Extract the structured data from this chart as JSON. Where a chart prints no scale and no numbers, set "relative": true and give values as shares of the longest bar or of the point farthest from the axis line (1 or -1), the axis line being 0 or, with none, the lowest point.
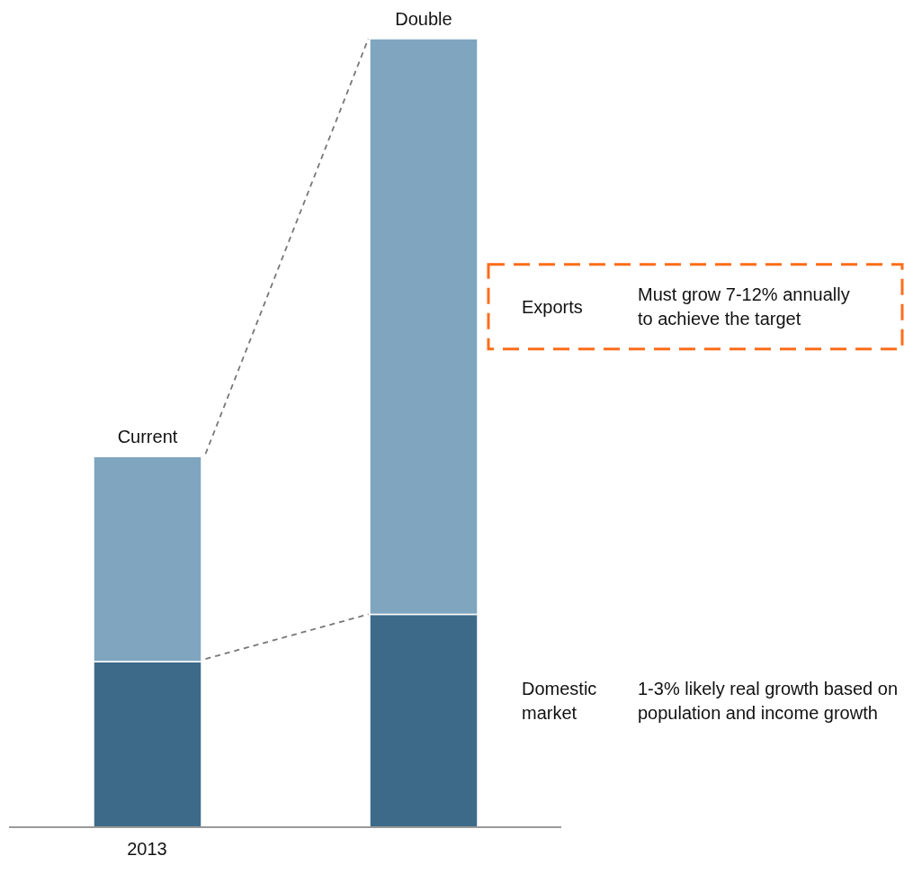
{
  "chart_data": {
    "type": "bar",
    "stacked": true,
    "relative": true,
    "categories": [
      "2013",
      null
    ],
    "series": [
      {
        "name": "Domestic market",
        "color": "#3d6a89",
        "values": [
          0.21,
          0.27
        ]
      },
      {
        "name": "Exports",
        "color": "#7fa5bf",
        "values": [
          0.26,
          0.73
        ]
      }
    ],
    "totals": [
      "Current",
      "Double"
    ],
    "annotations": [
      "1-3% likely real growth based on population and income growth",
      "Must grow 7-12% annually to achieve the target"
    ]
  }
}
